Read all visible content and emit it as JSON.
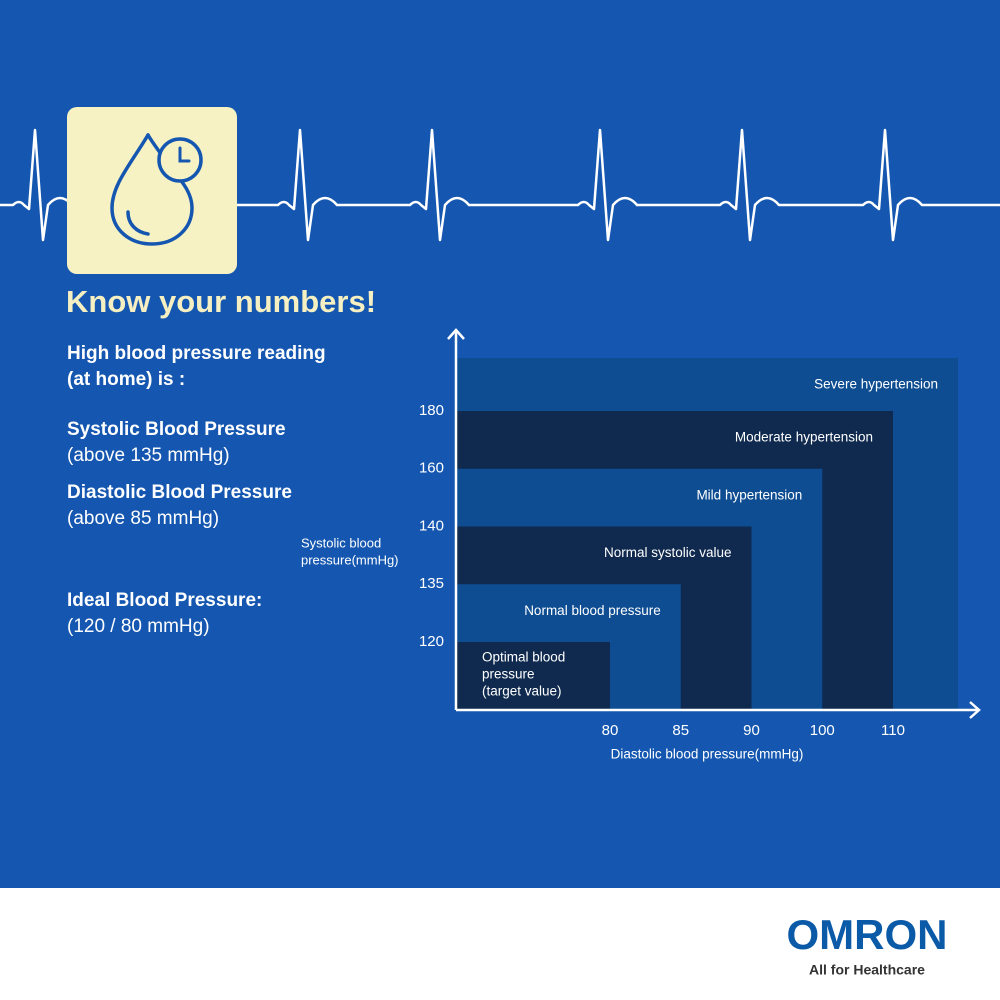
{
  "header": {
    "title": "Know your numbers!"
  },
  "info": {
    "heading": [
      "High blood pressure reading",
      "(at home) is :"
    ],
    "items": [
      {
        "title": "Systolic Blood Pressure",
        "detail": "(above 135 mmHg)"
      },
      {
        "title": "Diastolic Blood Pressure",
        "detail": "(above 85 mmHg)"
      },
      {
        "title": "Ideal Blood Pressure:",
        "detail": "(120 / 80 mmHg)"
      }
    ]
  },
  "chart_data": {
    "type": "zones",
    "xlabel": "Diastolic blood pressure(mmHg)",
    "ylabel": [
      "Systolic blood",
      "pressure(mmHg)"
    ],
    "xticks": [
      80,
      85,
      90,
      100,
      110
    ],
    "yticks": [
      120,
      135,
      140,
      160,
      180
    ],
    "zones": [
      {
        "label": [
          "Severe hypertension"
        ],
        "x": null,
        "y": null,
        "color": "#0e4d92"
      },
      {
        "label": [
          "Moderate hypertension"
        ],
        "x": 110,
        "y": 180,
        "color": "#0f2a4e"
      },
      {
        "label": [
          "Mild hypertension"
        ],
        "x": 100,
        "y": 160,
        "color": "#0e4d92"
      },
      {
        "label": [
          "Normal systolic value"
        ],
        "x": 90,
        "y": 140,
        "color": "#0f2a4e"
      },
      {
        "label": [
          "Normal blood pressure"
        ],
        "x": 85,
        "y": 135,
        "color": "#0e4d92"
      },
      {
        "label": [
          "Optimal blood",
          "pressure",
          "(target value)"
        ],
        "x": 80,
        "y": 120,
        "color": "#0f2a4e"
      }
    ]
  },
  "footer": {
    "brand": "OMRON",
    "tagline": "All for Healthcare"
  }
}
